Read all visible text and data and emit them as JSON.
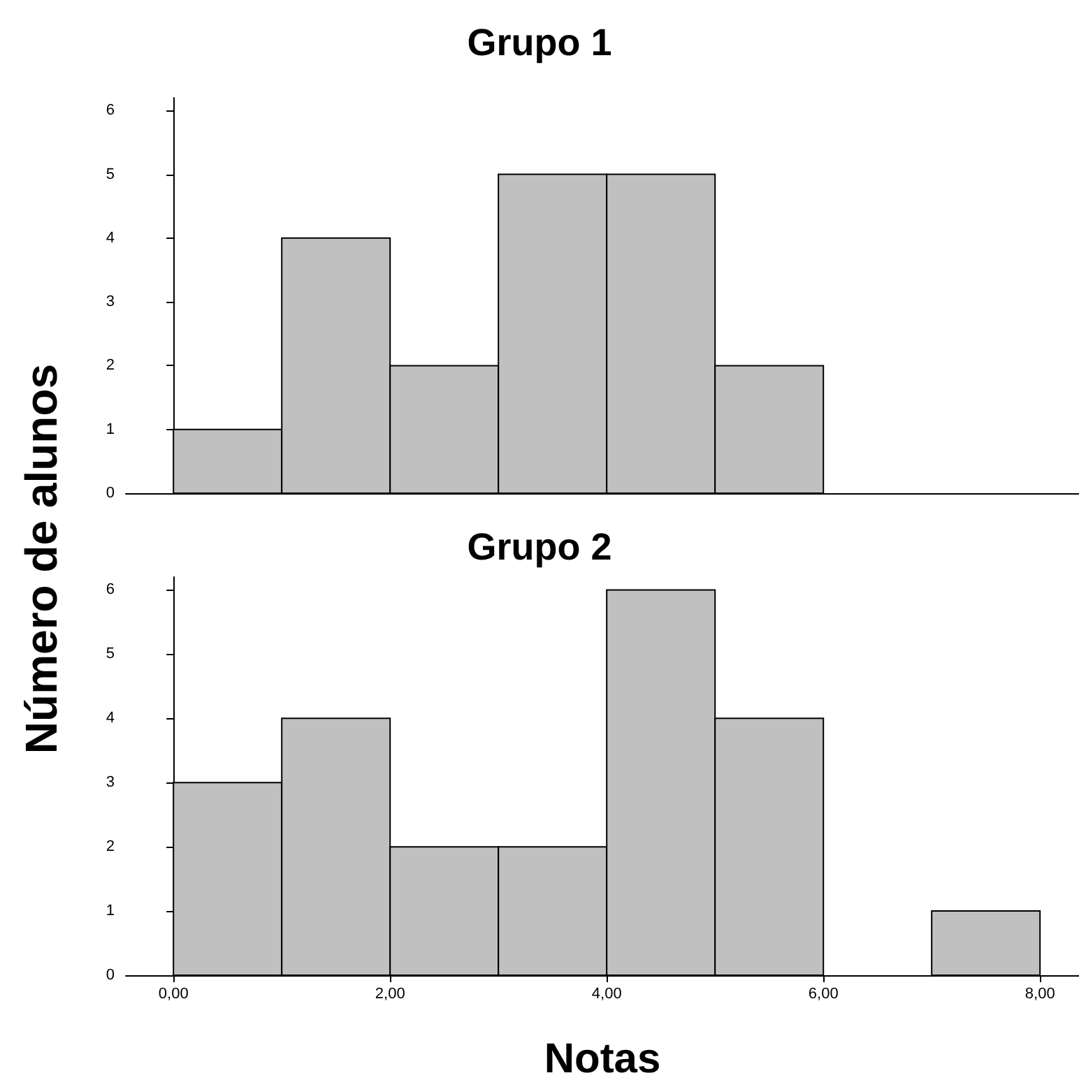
{
  "chart_data": [
    {
      "type": "histogram",
      "title": "Grupo 1",
      "ylabel": "Número de alunos",
      "bins": [
        0,
        1,
        2,
        3,
        4,
        5,
        6
      ],
      "values": [
        1,
        4,
        2,
        5,
        5,
        2
      ],
      "color": "#c0c0c0",
      "xlim": [
        -0.44,
        8.36
      ],
      "ylim": [
        0,
        6.2
      ],
      "yticks": [
        0,
        1,
        2,
        3,
        4,
        5,
        6
      ],
      "tick_labels": "y"
    },
    {
      "type": "histogram",
      "title": "Grupo 2",
      "xlabel": "Notas",
      "bins": [
        0,
        1,
        2,
        3,
        4,
        5,
        6,
        7,
        8
      ],
      "values": [
        3,
        4,
        2,
        2,
        6,
        4,
        0,
        1
      ],
      "color": "#c0c0c0",
      "xlim": [
        -0.44,
        8.36
      ],
      "xticks": [
        {
          "value": 0,
          "label": "0,00"
        },
        {
          "value": 2,
          "label": "2,00"
        },
        {
          "value": 4,
          "label": "4,00"
        },
        {
          "value": 6,
          "label": "6,00"
        },
        {
          "value": 8,
          "label": "8,00"
        }
      ],
      "ylim": [
        0,
        6.2
      ],
      "yticks": [
        0,
        1,
        2,
        3,
        4,
        5,
        6
      ]
    }
  ]
}
